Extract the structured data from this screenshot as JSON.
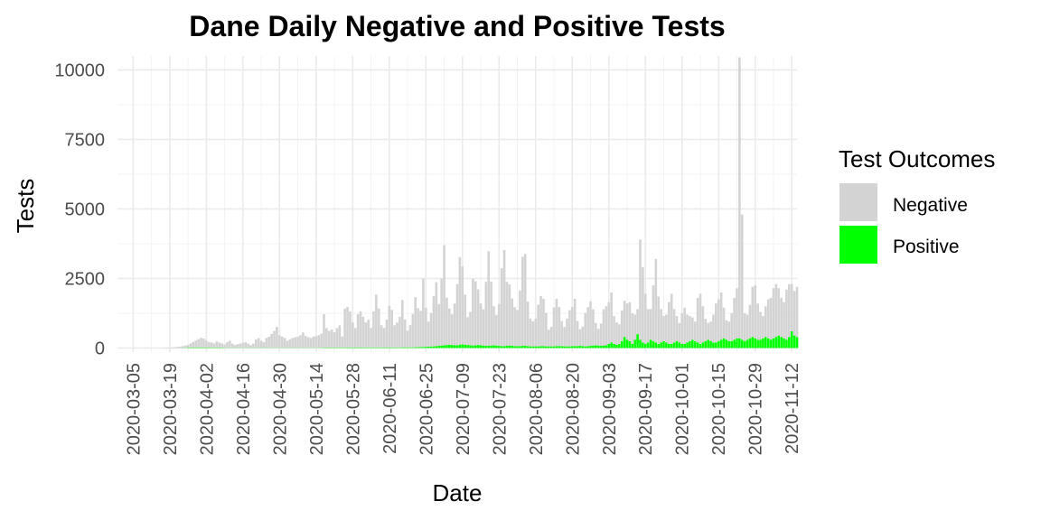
{
  "chart_data": {
    "type": "bar",
    "title": "Dane Daily Negative and Positive Tests",
    "xlabel": "Date",
    "ylabel": "Tests",
    "stacked": true,
    "ylim": [
      0,
      10500
    ],
    "xlim": [
      "2020-02-28",
      "2020-11-14"
    ],
    "x_ticks": [
      "2020-03-05",
      "2020-03-19",
      "2020-04-02",
      "2020-04-16",
      "2020-04-30",
      "2020-05-14",
      "2020-05-28",
      "2020-06-11",
      "2020-06-25",
      "2020-07-09",
      "2020-07-23",
      "2020-08-06",
      "2020-08-20",
      "2020-09-03",
      "2020-09-17",
      "2020-10-01",
      "2020-10-15",
      "2020-10-29",
      "2020-11-12"
    ],
    "y_ticks": [
      0,
      2500,
      5000,
      7500,
      10000
    ],
    "y_tick_labels": [
      "0",
      "2500",
      "5000",
      "7500",
      "10000"
    ],
    "legend": {
      "title": "Test Outcomes",
      "position": "right"
    },
    "start_date": "2020-03-15",
    "series": [
      {
        "name": "Negative",
        "color": "#D3D3D3",
        "values": [
          0,
          5,
          10,
          15,
          20,
          25,
          30,
          40,
          50,
          60,
          80,
          100,
          150,
          200,
          250,
          300,
          350,
          320,
          250,
          200,
          180,
          150,
          220,
          180,
          150,
          120,
          200,
          250,
          150,
          100,
          130,
          150,
          180,
          200,
          150,
          100,
          150,
          300,
          350,
          250,
          200,
          350,
          400,
          500,
          600,
          750,
          450,
          400,
          350,
          250,
          300,
          350,
          380,
          400,
          450,
          550,
          420,
          380,
          350,
          400,
          420,
          450,
          500,
          1200,
          700,
          600,
          650,
          550,
          700,
          800,
          400,
          1400,
          1450,
          1300,
          900,
          700,
          1200,
          1300,
          1100,
          900,
          1000,
          700,
          1300,
          1900,
          1400,
          800,
          700,
          1000,
          1500,
          1350,
          800,
          900,
          1100,
          1700,
          1000,
          600,
          800,
          1200,
          1800,
          1400,
          1300,
          2450,
          1400,
          900,
          1200,
          1800,
          2300,
          1500,
          2400,
          3600,
          1700,
          1300,
          1100,
          1500,
          2200,
          3150,
          2800,
          1800,
          1000,
          1200,
          2400,
          2300,
          2000,
          1500,
          1300,
          2300,
          3400,
          2300,
          1400,
          1100,
          1500,
          2800,
          3450,
          2300,
          2200,
          1700,
          1400,
          1300,
          2000,
          3200,
          3300,
          1600,
          1000,
          900,
          1000,
          1500,
          1800,
          1700,
          1200,
          600,
          700,
          1400,
          1700,
          1400,
          900,
          700,
          1000,
          1300,
          1400,
          1700,
          900,
          600,
          700,
          1200,
          1400,
          1600,
          1300,
          800,
          600,
          800,
          1300,
          1400,
          1500,
          1800,
          1000,
          800,
          700,
          1100,
          1300,
          1300,
          1400,
          1100,
          900,
          900,
          3600,
          2700,
          1800,
          1200,
          1100,
          2000,
          3000,
          1700,
          1200,
          900,
          1000,
          1500,
          1800,
          1200,
          900,
          700,
          1100,
          1300,
          1000,
          900,
          800,
          700,
          1600,
          1800,
          1300,
          800,
          600,
          700,
          1000,
          1400,
          1500,
          1700,
          1100,
          700,
          700,
          1000,
          1500,
          1800,
          10100,
          4500,
          1000,
          900,
          1200,
          1800,
          1900,
          1300,
          1000,
          800,
          1100,
          1400,
          1500,
          1800,
          1900,
          1700,
          1400,
          1300,
          1800,
          1900,
          1700,
          1600,
          1800
        ]
      },
      {
        "name": "Positive",
        "color": "#00FF00",
        "values": [
          0,
          0,
          0,
          0,
          0,
          0,
          0,
          5,
          5,
          10,
          10,
          15,
          15,
          20,
          20,
          20,
          20,
          20,
          20,
          15,
          15,
          15,
          15,
          15,
          15,
          10,
          10,
          10,
          10,
          10,
          10,
          10,
          10,
          10,
          10,
          10,
          10,
          10,
          10,
          10,
          10,
          10,
          10,
          10,
          10,
          10,
          10,
          10,
          10,
          10,
          10,
          10,
          10,
          10,
          10,
          10,
          10,
          10,
          10,
          10,
          10,
          10,
          10,
          15,
          15,
          15,
          15,
          15,
          15,
          15,
          15,
          15,
          20,
          20,
          20,
          20,
          20,
          20,
          20,
          20,
          20,
          20,
          20,
          20,
          20,
          20,
          20,
          20,
          20,
          20,
          20,
          20,
          20,
          25,
          25,
          25,
          25,
          25,
          30,
          30,
          35,
          40,
          45,
          50,
          55,
          60,
          70,
          80,
          90,
          100,
          110,
          120,
          110,
          100,
          100,
          120,
          130,
          120,
          110,
          100,
          90,
          100,
          110,
          100,
          90,
          80,
          80,
          90,
          100,
          90,
          80,
          70,
          70,
          80,
          90,
          80,
          70,
          70,
          70,
          80,
          80,
          70,
          60,
          60,
          60,
          60,
          70,
          70,
          60,
          60,
          60,
          60,
          70,
          70,
          70,
          60,
          60,
          60,
          70,
          70,
          70,
          80,
          70,
          60,
          70,
          80,
          90,
          100,
          90,
          80,
          90,
          100,
          150,
          200,
          150,
          120,
          150,
          250,
          400,
          300,
          250,
          150,
          300,
          500,
          300,
          200,
          150,
          200,
          300,
          250,
          200,
          150,
          200,
          250,
          200,
          150,
          150,
          200,
          250,
          200,
          150,
          150,
          200,
          250,
          300,
          250,
          200,
          150,
          200,
          250,
          300,
          250,
          200,
          200,
          250,
          300,
          350,
          300,
          250,
          250,
          300,
          350,
          350,
          300,
          250,
          300,
          350,
          400,
          350,
          300,
          300,
          350,
          400,
          350,
          300,
          350,
          400,
          450,
          400,
          350,
          300,
          400,
          600,
          450,
          400,
          450,
          500,
          550
        ]
      }
    ]
  }
}
